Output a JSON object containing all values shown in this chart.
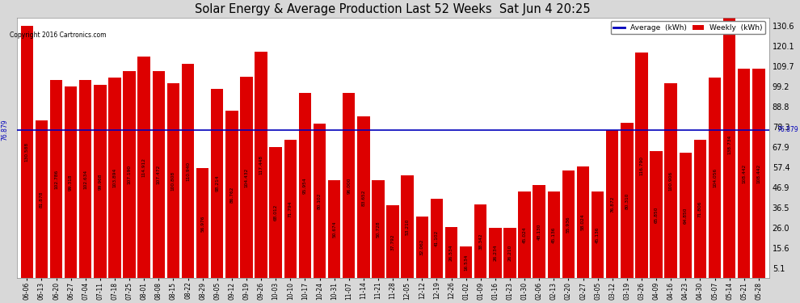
{
  "title": "Solar Energy & Average Production Last 52 Weeks  Sat Jun 4 20:25",
  "copyright": "Copyright 2016 Cartronics.com",
  "average_line": 76.879,
  "average_label": "76.879",
  "bar_color": "#dd0000",
  "avg_line_color": "#0000bb",
  "background_color": "#d8d8d8",
  "plot_bg_color": "#ffffff",
  "grid_color": "#aaaaaa",
  "legend_avg_color": "#0000bb",
  "legend_weekly_color": "#dd0000",
  "ylim_min": 0,
  "ylim_max": 135,
  "yticks": [
    5.1,
    15.6,
    26.0,
    36.5,
    46.9,
    57.4,
    67.9,
    78.3,
    88.8,
    99.2,
    109.7,
    120.1,
    130.6
  ],
  "categories": [
    "06-06",
    "06-13",
    "06-20",
    "06-27",
    "07-04",
    "07-11",
    "07-18",
    "07-25",
    "08-01",
    "08-08",
    "08-15",
    "08-22",
    "08-29",
    "09-05",
    "09-12",
    "09-19",
    "09-26",
    "10-03",
    "10-10",
    "10-17",
    "10-24",
    "10-31",
    "11-07",
    "11-14",
    "11-21",
    "11-28",
    "12-05",
    "12-12",
    "12-19",
    "12-26",
    "01-02",
    "01-09",
    "01-16",
    "01-23",
    "01-30",
    "02-06",
    "02-13",
    "02-20",
    "02-27",
    "03-05",
    "03-12",
    "03-19",
    "03-26",
    "04-09",
    "04-16",
    "04-23",
    "04-30",
    "05-07",
    "05-14",
    "05-21",
    "05-28"
  ],
  "values": [
    130.588,
    81.878,
    102.786,
    99.318,
    102.634,
    99.968,
    103.894,
    107.19,
    114.912,
    107.472,
    100.808,
    110.94,
    56.976,
    98.214,
    86.762,
    104.432,
    117.448,
    68.012,
    71.794,
    95.954,
    80.102,
    50.674,
    96.0,
    83.652,
    50.728,
    37.792,
    53.21,
    32.062,
    41.102,
    26.534,
    16.534,
    38.342,
    26.234,
    26.21,
    45.024,
    48.13,
    45.136,
    55.936,
    58.024,
    45.136,
    76.872,
    80.31,
    116.79,
    65.85,
    100.906,
    64.85,
    71.806,
    104.056,
    138.734,
    108.442,
    108.442
  ],
  "values_labels": [
    "130.588",
    "81.878",
    "102.786",
    "99.318",
    "102.634",
    "99.968",
    "103.894",
    "107.190",
    "114.912",
    "107.472",
    "100.808",
    "110.940",
    "56.976",
    "98.214",
    "86.762",
    "104.432",
    "117.448",
    "68.012",
    "71.794",
    "95.954",
    "80.102",
    "50.674",
    "96.000",
    "83.652",
    "50.728",
    "37.792",
    "53.210",
    "32.062",
    "41.102",
    "26.534",
    "16.534",
    "38.342",
    "26.234",
    "26.210",
    "45.024",
    "48.130",
    "45.136",
    "55.936",
    "58.024",
    "45.136",
    "76.872",
    "80.310",
    "116.790",
    "65.850",
    "100.906",
    "64.850",
    "71.806",
    "104.056",
    "138.734",
    "108.442",
    "108.442"
  ]
}
